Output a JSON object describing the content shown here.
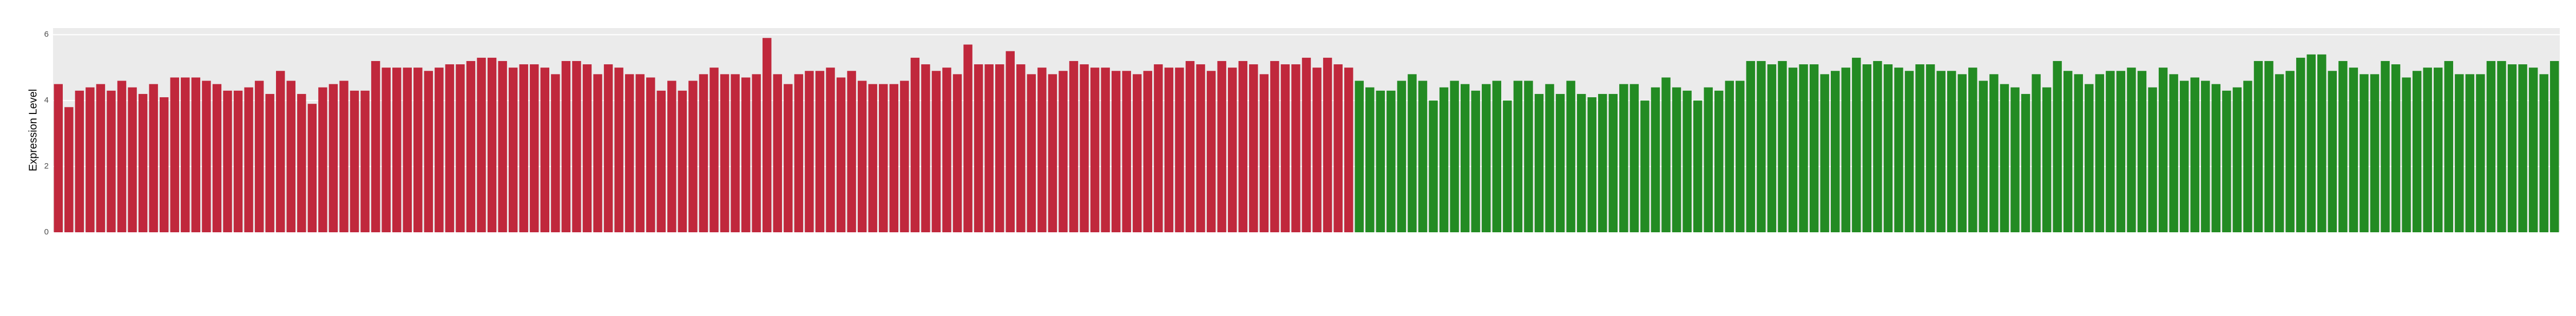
{
  "chart_data": {
    "type": "bar",
    "y_label": "Expression Level",
    "ylim": [
      0,
      6.2
    ],
    "yticks": [
      0,
      2,
      4,
      6
    ],
    "grid": true,
    "series": [
      {
        "color": "#c0283c",
        "values": [
          4.5,
          3.8,
          4.3,
          4.4,
          4.5,
          4.3,
          4.6,
          4.4,
          4.2,
          4.5,
          4.1,
          4.7,
          4.7,
          4.7,
          4.6,
          4.5,
          4.3,
          4.3,
          4.4,
          4.6,
          4.2,
          4.9,
          4.6,
          4.2,
          3.9,
          4.4,
          4.5,
          4.6,
          4.3,
          4.3,
          5.2,
          5.0,
          5.0,
          5.0,
          5.0,
          4.9,
          5.0,
          5.1,
          5.1,
          5.2,
          5.3,
          5.3,
          5.2,
          5.0,
          5.1,
          5.1,
          5.0,
          4.8,
          5.2,
          5.2,
          5.1,
          4.8,
          5.1,
          5.0,
          4.8,
          4.8,
          4.7,
          4.3,
          4.6,
          4.3,
          4.6,
          4.8,
          5.0,
          4.8,
          4.8,
          4.7,
          4.8,
          5.9,
          4.8,
          4.5,
          4.8,
          4.9,
          4.9,
          5.0,
          4.7,
          4.9,
          4.6,
          4.5,
          4.5,
          4.5,
          4.6,
          5.3,
          5.1,
          4.9,
          5.0,
          4.8,
          5.7,
          5.1,
          5.1,
          5.1,
          5.5,
          5.1,
          4.8,
          5.0,
          4.8,
          4.9,
          5.2,
          5.1,
          5.0,
          5.0,
          4.9,
          4.9,
          4.8,
          4.9,
          5.1,
          5.0,
          5.0,
          5.2,
          5.1,
          4.9,
          5.2,
          5.0,
          5.2,
          5.1,
          4.8,
          5.2,
          5.1,
          5.1,
          5.3,
          5.0,
          5.3,
          5.1,
          5.0
        ]
      },
      {
        "color": "#238b23",
        "values": [
          4.6,
          4.4,
          4.3,
          4.3,
          4.6,
          4.8,
          4.6,
          4.0,
          4.4,
          4.6,
          4.5,
          4.3,
          4.5,
          4.6,
          4.0,
          4.6,
          4.6,
          4.2,
          4.5,
          4.2,
          4.6,
          4.2,
          4.1,
          4.2,
          4.2,
          4.5,
          4.5,
          4.0,
          4.4,
          4.7,
          4.4,
          4.3,
          4.0,
          4.4,
          4.3,
          4.6,
          4.6,
          5.2,
          5.2,
          5.1,
          5.2,
          5.0,
          5.1,
          5.1,
          4.8,
          4.9,
          5.0,
          5.3,
          5.1,
          5.2,
          5.1,
          5.0,
          4.9,
          5.1,
          5.1,
          4.9,
          4.9,
          4.8,
          5.0,
          4.6,
          4.8,
          4.5,
          4.4,
          4.2,
          4.8,
          4.4,
          5.2,
          4.9,
          4.8,
          4.5,
          4.8,
          4.9,
          4.9,
          5.0,
          4.9,
          4.4,
          5.0,
          4.8,
          4.6,
          4.7,
          4.6,
          4.5,
          4.3,
          4.4,
          4.6,
          5.2,
          5.2,
          4.8,
          4.9,
          5.3,
          5.4,
          5.4,
          4.9,
          5.2,
          5.0,
          4.8,
          4.8,
          5.2,
          5.1,
          4.7,
          4.9,
          5.0,
          5.0,
          5.2,
          4.8,
          4.8,
          4.8,
          5.2,
          5.2,
          5.1,
          5.1,
          5.0,
          4.8,
          5.2
        ]
      }
    ]
  }
}
